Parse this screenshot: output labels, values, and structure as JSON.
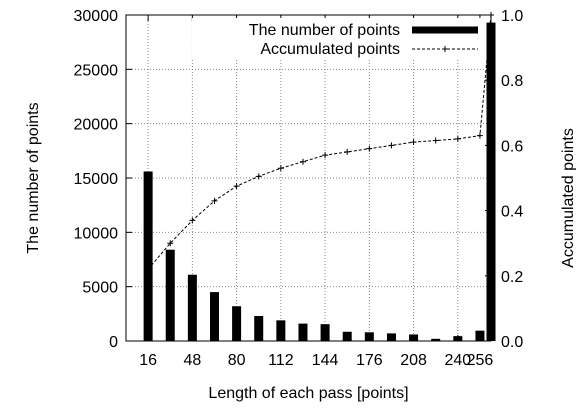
{
  "chart_data": {
    "type": "bar",
    "xlabel": "Length of each pass [points]",
    "ylabel": "The number of points",
    "y2label": "Accumulated points",
    "ylim": [
      0,
      30000
    ],
    "y2lim": [
      0,
      1.0
    ],
    "xlim": [
      0,
      264
    ],
    "x_ticks": [
      16,
      48,
      80,
      112,
      144,
      176,
      208,
      240,
      256
    ],
    "y_ticks": [
      0,
      5000,
      10000,
      15000,
      20000,
      25000,
      30000
    ],
    "y2_ticks": [
      "0.0",
      "0.2",
      "0.4",
      "0.6",
      "0.8",
      "1.0"
    ],
    "grid": true,
    "legend_position": "top-right",
    "series": [
      {
        "name": "The number of points",
        "type": "bar",
        "color": "#000000",
        "x": [
          16,
          32,
          48,
          64,
          80,
          96,
          112,
          128,
          144,
          160,
          176,
          192,
          208,
          224,
          240,
          256
        ],
        "values": [
          15600,
          8400,
          6100,
          4500,
          3200,
          2300,
          1900,
          1600,
          1550,
          850,
          800,
          700,
          600,
          200,
          450,
          950
        ],
        "extra_bar": {
          "x": 264,
          "value": 29300
        }
      },
      {
        "name": "Accumulated points",
        "type": "line",
        "axis": "y2",
        "color": "#000000",
        "x": [
          16,
          32,
          48,
          64,
          80,
          96,
          112,
          128,
          144,
          160,
          176,
          192,
          208,
          224,
          240,
          256,
          264
        ],
        "values": [
          0.22,
          0.3,
          0.37,
          0.43,
          0.475,
          0.505,
          0.53,
          0.55,
          0.57,
          0.58,
          0.59,
          0.6,
          0.61,
          0.615,
          0.62,
          0.63,
          1.0
        ]
      }
    ]
  }
}
